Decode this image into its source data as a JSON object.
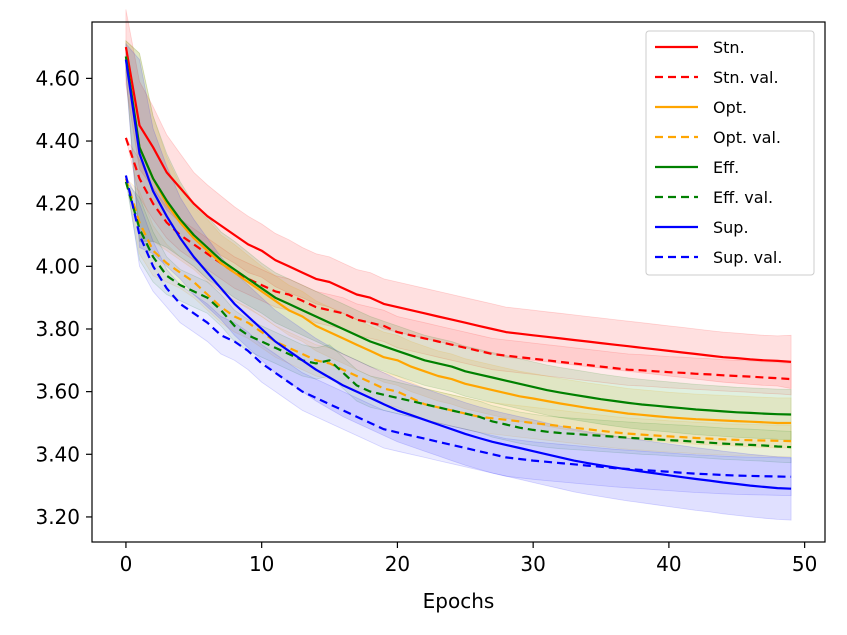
{
  "chart_data": {
    "type": "line",
    "xlabel": "Epochs",
    "ylabel": "",
    "xlim": [
      -2.5,
      51.5
    ],
    "ylim": [
      3.12,
      4.78
    ],
    "xticks": [
      0,
      10,
      20,
      30,
      40,
      50
    ],
    "xtick_labels": [
      "0",
      "10",
      "20",
      "30",
      "40",
      "50"
    ],
    "yticks": [
      3.2,
      3.4,
      3.6,
      3.8,
      4.0,
      4.2,
      4.4,
      4.6
    ],
    "ytick_labels": [
      "3.20",
      "3.40",
      "3.60",
      "3.80",
      "4.00",
      "4.20",
      "4.40",
      "4.60"
    ],
    "grid": false,
    "legend_position": "top-right",
    "x": [
      0,
      1,
      2,
      3,
      4,
      5,
      6,
      7,
      8,
      9,
      10,
      11,
      12,
      13,
      14,
      15,
      16,
      17,
      18,
      19,
      20,
      21,
      22,
      23,
      24,
      25,
      26,
      27,
      28,
      29,
      30,
      31,
      32,
      33,
      34,
      35,
      36,
      37,
      38,
      39,
      40,
      41,
      42,
      43,
      44,
      45,
      46,
      47,
      48,
      49
    ],
    "series": [
      {
        "name": "Stn.",
        "color": "#ff0000",
        "dashed": false,
        "values": [
          4.7,
          4.45,
          4.38,
          4.3,
          4.25,
          4.2,
          4.16,
          4.13,
          4.1,
          4.07,
          4.05,
          4.02,
          4.0,
          3.98,
          3.96,
          3.95,
          3.93,
          3.91,
          3.9,
          3.88,
          3.87,
          3.86,
          3.85,
          3.84,
          3.83,
          3.82,
          3.81,
          3.8,
          3.79,
          3.785,
          3.78,
          3.775,
          3.77,
          3.765,
          3.76,
          3.755,
          3.75,
          3.745,
          3.74,
          3.735,
          3.73,
          3.725,
          3.72,
          3.715,
          3.71,
          3.707,
          3.703,
          3.7,
          3.698,
          3.695
        ],
        "band": [
          0.12,
          0.14,
          0.13,
          0.12,
          0.11,
          0.1,
          0.1,
          0.095,
          0.09,
          0.09,
          0.085,
          0.085,
          0.085,
          0.08,
          0.08,
          0.08,
          0.08,
          0.08,
          0.08,
          0.08,
          0.08,
          0.08,
          0.08,
          0.08,
          0.08,
          0.08,
          0.08,
          0.08,
          0.08,
          0.08,
          0.08,
          0.08,
          0.08,
          0.08,
          0.08,
          0.08,
          0.08,
          0.08,
          0.08,
          0.08,
          0.08,
          0.08,
          0.08,
          0.08,
          0.08,
          0.08,
          0.08,
          0.08,
          0.08,
          0.085
        ]
      },
      {
        "name": "Stn. val.",
        "color": "#ff0000",
        "dashed": true,
        "values": [
          4.41,
          4.28,
          4.2,
          4.14,
          4.1,
          4.07,
          4.04,
          4.01,
          3.98,
          3.96,
          3.94,
          3.92,
          3.91,
          3.89,
          3.87,
          3.86,
          3.85,
          3.83,
          3.82,
          3.81,
          3.79,
          3.78,
          3.77,
          3.76,
          3.75,
          3.74,
          3.73,
          3.72,
          3.715,
          3.71,
          3.705,
          3.7,
          3.695,
          3.69,
          3.685,
          3.68,
          3.675,
          3.67,
          3.668,
          3.665,
          3.662,
          3.66,
          3.657,
          3.655,
          3.652,
          3.65,
          3.648,
          3.645,
          3.643,
          3.64
        ],
        "band": [
          0,
          0.06,
          0.05,
          0.05,
          0.05,
          0.05,
          0.05,
          0.05,
          0.05,
          0.05,
          0.05,
          0.05,
          0.05,
          0.05,
          0.05,
          0.05,
          0.05,
          0.05,
          0.05,
          0.05,
          0.05,
          0.05,
          0.05,
          0.05,
          0.05,
          0.05,
          0.05,
          0.05,
          0.05,
          0.05,
          0.05,
          0.05,
          0.05,
          0.05,
          0.05,
          0.05,
          0.05,
          0.05,
          0.05,
          0.05,
          0.05,
          0.05,
          0.05,
          0.05,
          0.05,
          0.05,
          0.05,
          0.05,
          0.05,
          0.05
        ]
      },
      {
        "name": "Opt.",
        "color": "#ffa500",
        "dashed": false,
        "values": [
          4.67,
          4.38,
          4.28,
          4.2,
          4.14,
          4.09,
          4.05,
          4.01,
          3.98,
          3.95,
          3.92,
          3.89,
          3.86,
          3.84,
          3.81,
          3.79,
          3.77,
          3.75,
          3.73,
          3.71,
          3.7,
          3.68,
          3.665,
          3.65,
          3.64,
          3.625,
          3.615,
          3.605,
          3.595,
          3.585,
          3.578,
          3.57,
          3.562,
          3.555,
          3.548,
          3.542,
          3.536,
          3.53,
          3.526,
          3.522,
          3.518,
          3.515,
          3.512,
          3.51,
          3.508,
          3.506,
          3.504,
          3.502,
          3.5,
          3.5
        ],
        "band": [
          0.05,
          0.3,
          0.2,
          0.15,
          0.12,
          0.1,
          0.1,
          0.09,
          0.09,
          0.085,
          0.08,
          0.08,
          0.08,
          0.08,
          0.08,
          0.08,
          0.08,
          0.08,
          0.08,
          0.08,
          0.08,
          0.08,
          0.08,
          0.08,
          0.08,
          0.08,
          0.08,
          0.08,
          0.08,
          0.08,
          0.08,
          0.08,
          0.08,
          0.08,
          0.08,
          0.08,
          0.08,
          0.08,
          0.08,
          0.08,
          0.08,
          0.08,
          0.08,
          0.08,
          0.08,
          0.08,
          0.08,
          0.08,
          0.08,
          0.08
        ]
      },
      {
        "name": "Opt. val.",
        "color": "#ffa500",
        "dashed": true,
        "values": [
          4.28,
          4.14,
          4.05,
          4.01,
          3.98,
          3.95,
          3.91,
          3.87,
          3.84,
          3.82,
          3.79,
          3.76,
          3.74,
          3.72,
          3.7,
          3.69,
          3.67,
          3.65,
          3.63,
          3.61,
          3.6,
          3.58,
          3.56,
          3.55,
          3.54,
          3.53,
          3.52,
          3.515,
          3.51,
          3.505,
          3.5,
          3.495,
          3.49,
          3.485,
          3.48,
          3.475,
          3.47,
          3.466,
          3.463,
          3.46,
          3.457,
          3.455,
          3.452,
          3.45,
          3.448,
          3.446,
          3.445,
          3.444,
          3.443,
          3.442
        ],
        "band": [
          0,
          0.1,
          0.08,
          0.06,
          0.05,
          0.05,
          0.05,
          0.05,
          0.05,
          0.05,
          0.05,
          0.05,
          0.05,
          0.05,
          0.05,
          0.05,
          0.05,
          0.05,
          0.05,
          0.05,
          0.05,
          0.05,
          0.05,
          0.05,
          0.05,
          0.05,
          0.05,
          0.05,
          0.05,
          0.05,
          0.05,
          0.05,
          0.05,
          0.05,
          0.05,
          0.05,
          0.05,
          0.05,
          0.05,
          0.05,
          0.05,
          0.05,
          0.05,
          0.05,
          0.05,
          0.05,
          0.05,
          0.05,
          0.05,
          0.05
        ]
      },
      {
        "name": "Eff.",
        "color": "#008000",
        "dashed": false,
        "values": [
          4.67,
          4.38,
          4.28,
          4.21,
          4.15,
          4.1,
          4.06,
          4.02,
          3.99,
          3.96,
          3.93,
          3.9,
          3.88,
          3.86,
          3.84,
          3.82,
          3.8,
          3.78,
          3.76,
          3.745,
          3.73,
          3.715,
          3.7,
          3.69,
          3.68,
          3.665,
          3.655,
          3.645,
          3.635,
          3.625,
          3.615,
          3.605,
          3.597,
          3.59,
          3.583,
          3.576,
          3.57,
          3.564,
          3.559,
          3.555,
          3.551,
          3.547,
          3.543,
          3.54,
          3.537,
          3.534,
          3.532,
          3.53,
          3.528,
          3.527
        ],
        "band": [
          0.05,
          0.3,
          0.2,
          0.15,
          0.12,
          0.1,
          0.1,
          0.09,
          0.09,
          0.085,
          0.08,
          0.08,
          0.08,
          0.08,
          0.08,
          0.08,
          0.08,
          0.08,
          0.08,
          0.08,
          0.08,
          0.08,
          0.08,
          0.08,
          0.08,
          0.08,
          0.08,
          0.08,
          0.08,
          0.08,
          0.08,
          0.08,
          0.08,
          0.08,
          0.08,
          0.08,
          0.08,
          0.08,
          0.08,
          0.08,
          0.08,
          0.08,
          0.08,
          0.08,
          0.08,
          0.08,
          0.08,
          0.08,
          0.08,
          0.08
        ]
      },
      {
        "name": "Eff. val.",
        "color": "#008000",
        "dashed": true,
        "values": [
          4.27,
          4.12,
          4.03,
          3.97,
          3.94,
          3.92,
          3.9,
          3.86,
          3.81,
          3.78,
          3.76,
          3.74,
          3.72,
          3.7,
          3.69,
          3.7,
          3.66,
          3.62,
          3.6,
          3.59,
          3.58,
          3.57,
          3.56,
          3.55,
          3.54,
          3.53,
          3.52,
          3.505,
          3.495,
          3.485,
          3.478,
          3.472,
          3.468,
          3.465,
          3.462,
          3.459,
          3.456,
          3.453,
          3.45,
          3.448,
          3.445,
          3.443,
          3.44,
          3.437,
          3.434,
          3.432,
          3.43,
          3.428,
          3.425,
          3.423
        ],
        "band": [
          0,
          0.1,
          0.08,
          0.06,
          0.05,
          0.05,
          0.05,
          0.05,
          0.05,
          0.05,
          0.05,
          0.05,
          0.05,
          0.05,
          0.05,
          0.05,
          0.05,
          0.05,
          0.05,
          0.05,
          0.05,
          0.05,
          0.05,
          0.05,
          0.05,
          0.05,
          0.05,
          0.05,
          0.05,
          0.05,
          0.05,
          0.05,
          0.05,
          0.05,
          0.05,
          0.05,
          0.05,
          0.05,
          0.05,
          0.05,
          0.05,
          0.05,
          0.05,
          0.05,
          0.05,
          0.05,
          0.05,
          0.05,
          0.05,
          0.05
        ]
      },
      {
        "name": "Sup.",
        "color": "#0000ff",
        "dashed": false,
        "values": [
          4.66,
          4.36,
          4.24,
          4.16,
          4.09,
          4.03,
          3.98,
          3.93,
          3.88,
          3.84,
          3.8,
          3.76,
          3.73,
          3.7,
          3.67,
          3.645,
          3.62,
          3.6,
          3.58,
          3.56,
          3.54,
          3.525,
          3.51,
          3.495,
          3.48,
          3.465,
          3.452,
          3.44,
          3.43,
          3.42,
          3.41,
          3.4,
          3.39,
          3.38,
          3.372,
          3.365,
          3.358,
          3.351,
          3.345,
          3.339,
          3.333,
          3.327,
          3.321,
          3.316,
          3.31,
          3.305,
          3.3,
          3.296,
          3.292,
          3.29
        ],
        "band": [
          0.05,
          0.3,
          0.2,
          0.16,
          0.13,
          0.12,
          0.11,
          0.1,
          0.1,
          0.1,
          0.1,
          0.1,
          0.1,
          0.1,
          0.1,
          0.1,
          0.1,
          0.1,
          0.1,
          0.1,
          0.1,
          0.1,
          0.1,
          0.1,
          0.1,
          0.1,
          0.1,
          0.1,
          0.1,
          0.1,
          0.1,
          0.1,
          0.1,
          0.1,
          0.1,
          0.1,
          0.1,
          0.1,
          0.1,
          0.1,
          0.1,
          0.1,
          0.1,
          0.1,
          0.1,
          0.1,
          0.1,
          0.1,
          0.1,
          0.1
        ]
      },
      {
        "name": "Sup. val.",
        "color": "#0000ff",
        "dashed": true,
        "values": [
          4.29,
          4.1,
          4.0,
          3.93,
          3.88,
          3.85,
          3.82,
          3.78,
          3.76,
          3.73,
          3.69,
          3.66,
          3.63,
          3.6,
          3.58,
          3.56,
          3.54,
          3.52,
          3.5,
          3.48,
          3.47,
          3.46,
          3.45,
          3.44,
          3.43,
          3.42,
          3.41,
          3.4,
          3.39,
          3.385,
          3.38,
          3.376,
          3.372,
          3.368,
          3.364,
          3.36,
          3.356,
          3.353,
          3.35,
          3.347,
          3.344,
          3.341,
          3.338,
          3.336,
          3.334,
          3.332,
          3.331,
          3.33,
          3.329,
          3.328
        ],
        "band": [
          0,
          0.1,
          0.08,
          0.06,
          0.06,
          0.06,
          0.06,
          0.06,
          0.06,
          0.06,
          0.06,
          0.06,
          0.06,
          0.06,
          0.06,
          0.06,
          0.06,
          0.06,
          0.06,
          0.06,
          0.06,
          0.06,
          0.06,
          0.06,
          0.06,
          0.06,
          0.06,
          0.06,
          0.06,
          0.06,
          0.06,
          0.06,
          0.06,
          0.06,
          0.06,
          0.06,
          0.06,
          0.06,
          0.06,
          0.06,
          0.06,
          0.06,
          0.06,
          0.06,
          0.06,
          0.06,
          0.06,
          0.06,
          0.06,
          0.06
        ]
      }
    ]
  }
}
